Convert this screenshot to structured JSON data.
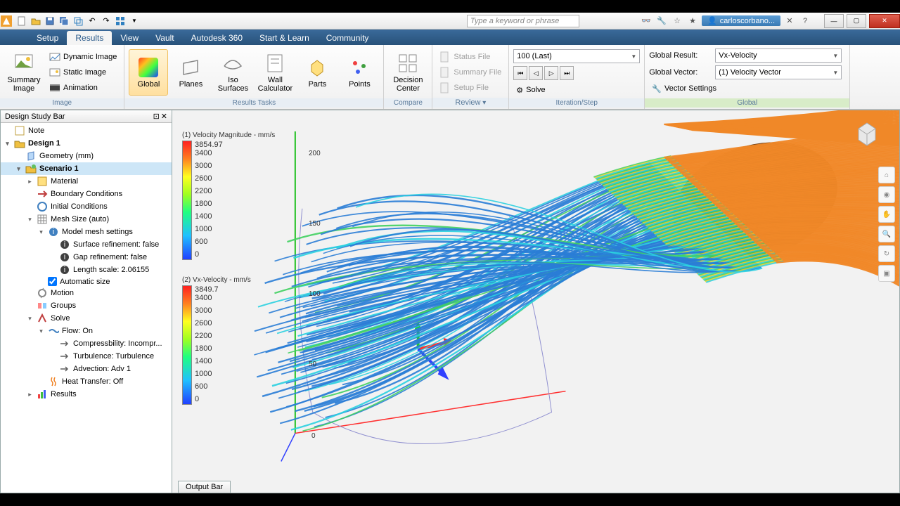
{
  "titlebar": {
    "search_placeholder": "Type a keyword or phrase",
    "username": "carloscorbano..."
  },
  "tabs": [
    "Setup",
    "Results",
    "View",
    "Vault",
    "Autodesk 360",
    "Start & Learn",
    "Community"
  ],
  "active_tab_index": 1,
  "ribbon": {
    "image": {
      "summary": "Summary Image",
      "dynamic": "Dynamic Image",
      "static": "Static Image",
      "animation": "Animation",
      "label": "Image"
    },
    "tasks": {
      "global": "Global",
      "planes": "Planes",
      "iso": "Iso Surfaces",
      "wall": "Wall Calculator",
      "parts": "Parts",
      "points": "Points",
      "label": "Results Tasks"
    },
    "compare": {
      "decision": "Decision Center",
      "label": "Compare"
    },
    "review": {
      "status": "Status File",
      "summary": "Summary File",
      "setup": "Setup File",
      "label": "Review"
    },
    "iteration": {
      "combo": "100 (Last)",
      "solve": "Solve",
      "label": "Iteration/Step"
    },
    "global": {
      "result_label": "Global Result:",
      "result_value": "Vx-Velocity",
      "vector_label": "Global Vector:",
      "vector_value": "(1) Velocity Vector",
      "settings": "Vector Settings",
      "label": "Global"
    }
  },
  "sidebar": {
    "title": "Design Study Bar",
    "nodes": [
      {
        "ind": 0,
        "exp": "",
        "ico": "note",
        "label": "Note"
      },
      {
        "ind": 0,
        "exp": "▾",
        "ico": "design",
        "label": "Design 1",
        "bold": true
      },
      {
        "ind": 1,
        "exp": "",
        "ico": "geom",
        "label": "Geometry (mm)"
      },
      {
        "ind": 1,
        "exp": "▾",
        "ico": "scenario",
        "label": "Scenario 1",
        "bold": true,
        "sel": true
      },
      {
        "ind": 2,
        "exp": "▸",
        "ico": "mat",
        "label": "Material"
      },
      {
        "ind": 2,
        "exp": "",
        "ico": "bc",
        "label": "Boundary Conditions"
      },
      {
        "ind": 2,
        "exp": "",
        "ico": "ic",
        "label": "Initial Conditions"
      },
      {
        "ind": 2,
        "exp": "▾",
        "ico": "mesh",
        "label": "Mesh Size (auto)"
      },
      {
        "ind": 3,
        "exp": "▾",
        "ico": "model",
        "label": "Model mesh settings"
      },
      {
        "ind": 4,
        "exp": "",
        "ico": "info",
        "label": "Surface refinement: false"
      },
      {
        "ind": 4,
        "exp": "",
        "ico": "info",
        "label": "Gap refinement: false"
      },
      {
        "ind": 4,
        "exp": "",
        "ico": "info",
        "label": "Length scale: 2.06155"
      },
      {
        "ind": 3,
        "exp": "",
        "ico": "check",
        "label": "Automatic size",
        "check": true
      },
      {
        "ind": 2,
        "exp": "",
        "ico": "motion",
        "label": "Motion"
      },
      {
        "ind": 2,
        "exp": "",
        "ico": "groups",
        "label": "Groups"
      },
      {
        "ind": 2,
        "exp": "▾",
        "ico": "solve",
        "label": "Solve"
      },
      {
        "ind": 3,
        "exp": "▾",
        "ico": "flow",
        "label": "Flow: On"
      },
      {
        "ind": 4,
        "exp": "",
        "ico": "arrow",
        "label": "Compressbility: Incompr..."
      },
      {
        "ind": 4,
        "exp": "",
        "ico": "arrow",
        "label": "Turbulence: Turbulence"
      },
      {
        "ind": 4,
        "exp": "",
        "ico": "arrow",
        "label": "Advection: Adv 1"
      },
      {
        "ind": 3,
        "exp": "",
        "ico": "heat",
        "label": "Heat Transfer: Off"
      },
      {
        "ind": 2,
        "exp": "▸",
        "ico": "results",
        "label": "Results"
      }
    ]
  },
  "viewport": {
    "legend1": {
      "title": "(1) Velocity Magnitude - mm/s",
      "max": "3854.97",
      "ticks": [
        "3400",
        "3000",
        "2600",
        "2200",
        "1800",
        "1400",
        "1000",
        "600",
        "0"
      ]
    },
    "legend2": {
      "title": "(2) Vx-Velocity - mm/s",
      "max": "3849.7",
      "ticks": [
        "3400",
        "3000",
        "2600",
        "2200",
        "1800",
        "1400",
        "1000",
        "600",
        "0"
      ]
    },
    "axis_labels": {
      "y200": "200",
      "y150": "150",
      "y100": "100",
      "y50": "50",
      "y0": "0"
    },
    "output_bar": "Output Bar",
    "streamlines": {
      "count": 120,
      "colors": {
        "blue": "#2a7dd6",
        "cyan": "#2ad0e0",
        "green": "#40d060",
        "yellow": "#e8d030",
        "orange": "#f08828",
        "brown": "#a05820"
      }
    }
  }
}
